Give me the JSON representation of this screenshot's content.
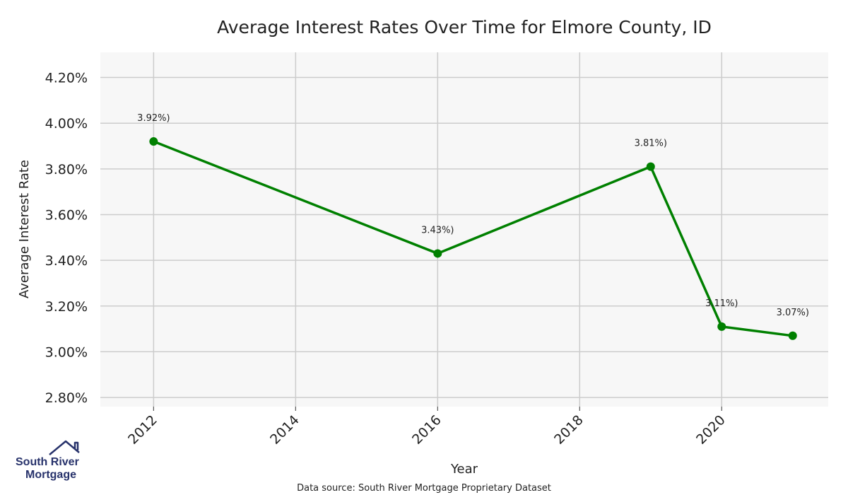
{
  "chart_data": {
    "type": "line",
    "title": "Average Interest Rates Over Time for Elmore County, ID",
    "xlabel": "Year",
    "ylabel": "Average Interest Rate",
    "x": [
      2012,
      2016,
      2019,
      2020,
      2021
    ],
    "values": [
      3.92,
      3.43,
      3.81,
      3.11,
      3.07
    ],
    "point_labels": [
      "3.92%)",
      "3.43%)",
      "3.81%)",
      "3.11%)",
      "3.07%)"
    ],
    "x_ticks": [
      "2012",
      "2014",
      "2016",
      "2018",
      "2020"
    ],
    "x_tick_values": [
      2012,
      2014,
      2016,
      2018,
      2020
    ],
    "y_ticks": [
      "2.80%",
      "3.00%",
      "3.20%",
      "3.40%",
      "3.60%",
      "3.80%",
      "4.00%",
      "4.20%"
    ],
    "y_tick_values": [
      2.8,
      3.0,
      3.2,
      3.4,
      3.6,
      3.8,
      4.0,
      4.2
    ],
    "xlim": [
      2011.25,
      2021.5
    ],
    "ylim": [
      2.76,
      4.31
    ],
    "grid": true,
    "line_color": "#008000",
    "plot_background": "#f7f7f7",
    "grid_color": "#cccccc"
  },
  "source_note": "Data source: South River Mortgage Proprietary Dataset",
  "logo": {
    "line1": "South River",
    "line2": "Mortgage",
    "color": "#27326b"
  }
}
